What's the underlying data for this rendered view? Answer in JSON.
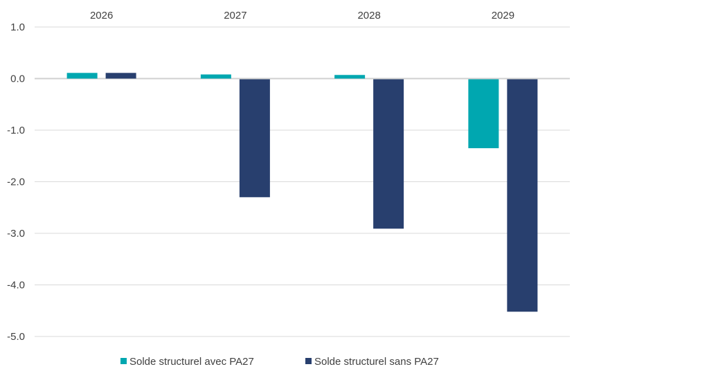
{
  "chart_data": {
    "type": "bar",
    "title": "",
    "xlabel": "",
    "ylabel": "",
    "categories": [
      "2026",
      "2027",
      "2028",
      "2029"
    ],
    "series": [
      {
        "name": "Solde structurel avec PA27",
        "color": "#00A7B0",
        "values": [
          0.11,
          0.08,
          0.07,
          -1.35
        ]
      },
      {
        "name": "Solde structurel sans PA27",
        "color": "#283F6E",
        "values": [
          0.11,
          -2.3,
          -2.91,
          -4.52
        ]
      }
    ],
    "ylim": [
      -5,
      1
    ],
    "yticks": [
      "1.0",
      "0.0",
      "-1.0",
      "-2.0",
      "-3.0",
      "-4.0",
      "-5.0"
    ],
    "ytick_values": [
      1,
      0,
      -1,
      -2,
      -3,
      -4,
      -5
    ],
    "grid": true,
    "category_labels_position": "top",
    "legend_position": "bottom"
  }
}
